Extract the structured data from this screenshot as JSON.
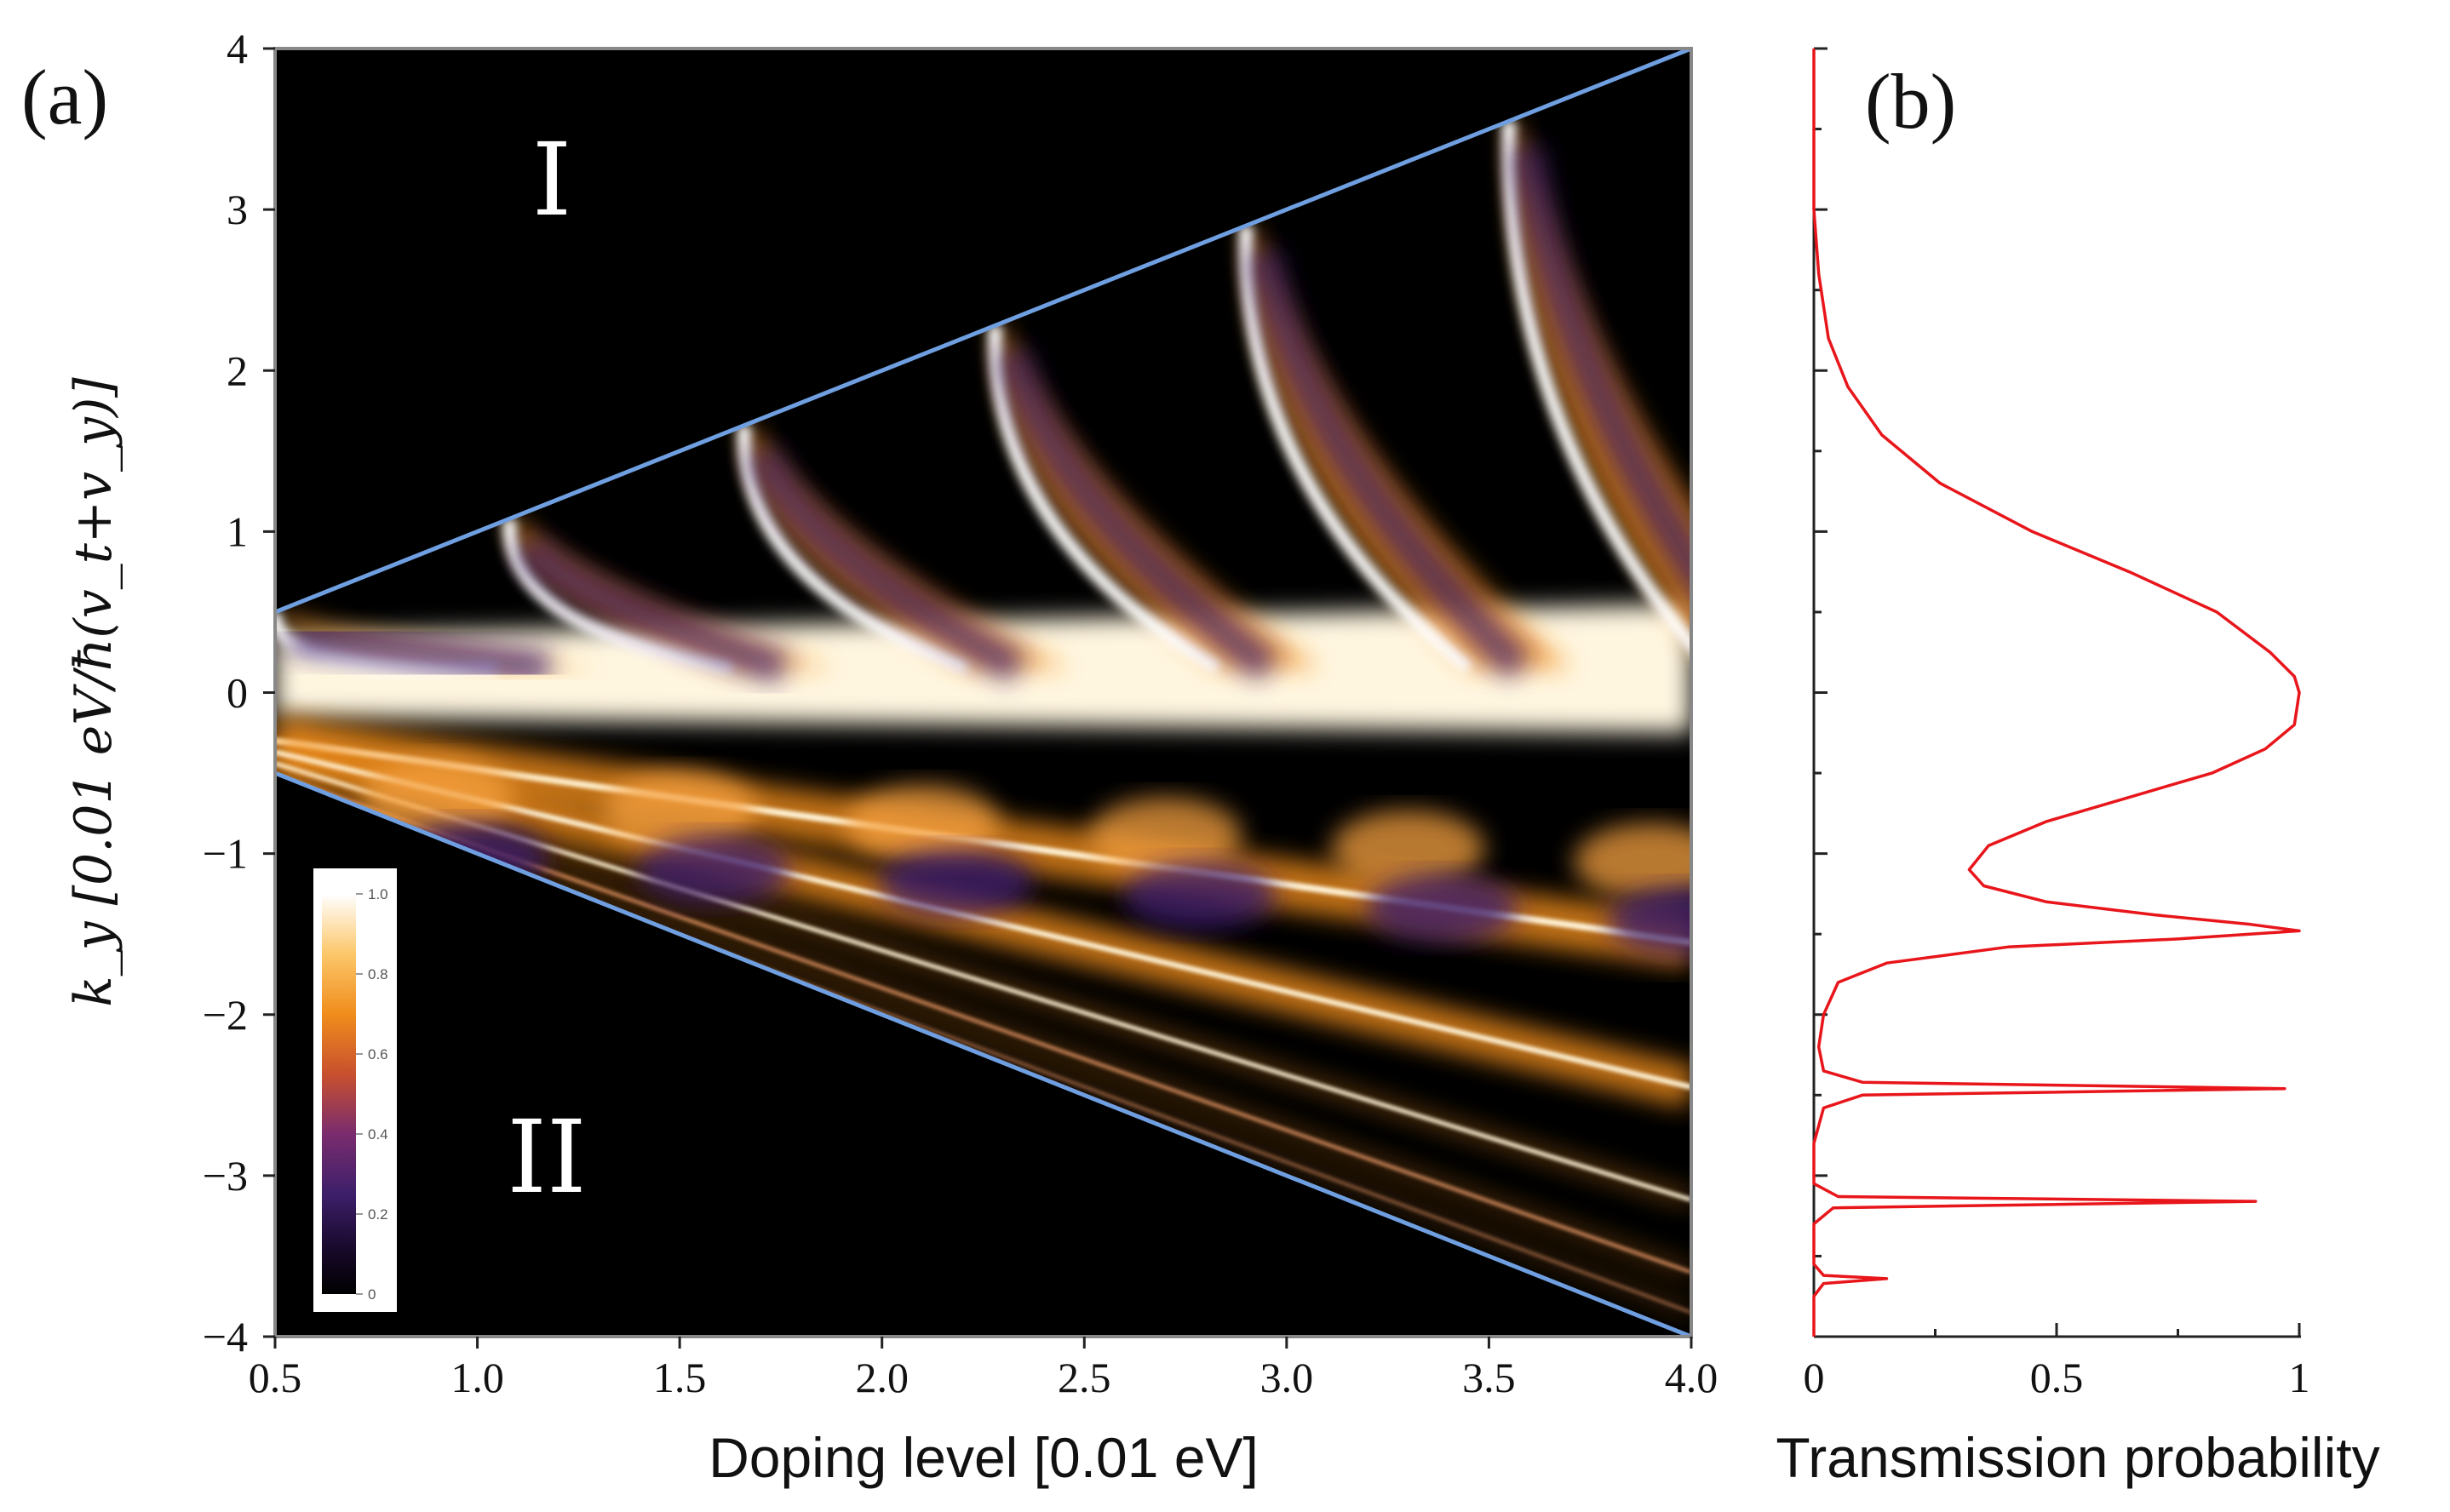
{
  "chart_data": [
    {
      "panel_label": "(a)",
      "type": "heatmap",
      "xlabel": "Doping level [0.01 eV]",
      "ylabel": "k_y [0.01 eV/ħ(v_t+v_y)]",
      "xlim": [
        0.5,
        4.0
      ],
      "ylim": [
        -4,
        4
      ],
      "x_ticks": [
        "0.5",
        "1.0",
        "1.5",
        "2.0",
        "2.5",
        "3.0",
        "3.5",
        "4.0"
      ],
      "y_ticks": [
        "4",
        "3",
        "2",
        "1",
        "0",
        "−1",
        "−2",
        "−3",
        "−4"
      ],
      "region_labels": [
        "I",
        "II"
      ],
      "colorbar": {
        "min": 0,
        "max": 1,
        "ticks": [
          "1.0",
          "0.8",
          "0.6",
          "0.4",
          "0.2",
          "0"
        ]
      },
      "boundary_lines": [
        {
          "name": "upper",
          "x": [
            0.5,
            4.0
          ],
          "y": [
            0.5,
            4.0
          ]
        },
        {
          "name": "lower",
          "x": [
            0.5,
            4.0
          ],
          "y": [
            -0.5,
            -4.0
          ]
        }
      ],
      "cusps": [
        {
          "x": 0.5,
          "y": 0.5
        },
        {
          "x": 1.08,
          "y": 1.08
        },
        {
          "x": 1.66,
          "y": 1.66
        },
        {
          "x": 2.28,
          "y": 2.28
        },
        {
          "x": 2.9,
          "y": 2.9
        },
        {
          "x": 3.55,
          "y": 3.55
        }
      ],
      "resonance_lines_end_y": [
        -1.55,
        -2.45,
        -3.15,
        -3.6,
        -3.85
      ],
      "colors": {
        "upper_boundary": "#6f9fe0",
        "lower_boundary": "#6f9fe0"
      }
    },
    {
      "panel_label": "(b)",
      "type": "line",
      "xlabel": "Transmission probability",
      "x_ticks": [
        "0",
        "0.5",
        "1"
      ],
      "xlim": [
        0,
        1
      ],
      "ylim": [
        -4,
        4
      ],
      "series": [
        {
          "name": "transmission",
          "color": "#e8161b",
          "points": [
            [
              0.0,
              4.0
            ],
            [
              0.0,
              3.5
            ],
            [
              0.0,
              3.0
            ],
            [
              0.01,
              2.6
            ],
            [
              0.03,
              2.2
            ],
            [
              0.07,
              1.9
            ],
            [
              0.14,
              1.6
            ],
            [
              0.26,
              1.3
            ],
            [
              0.45,
              1.0
            ],
            [
              0.65,
              0.75
            ],
            [
              0.83,
              0.5
            ],
            [
              0.94,
              0.25
            ],
            [
              0.99,
              0.1
            ],
            [
              1.0,
              0.0
            ],
            [
              0.99,
              -0.2
            ],
            [
              0.93,
              -0.35
            ],
            [
              0.82,
              -0.5
            ],
            [
              0.65,
              -0.65
            ],
            [
              0.48,
              -0.8
            ],
            [
              0.36,
              -0.95
            ],
            [
              0.32,
              -1.1
            ],
            [
              0.35,
              -1.2
            ],
            [
              0.48,
              -1.3
            ],
            [
              0.7,
              -1.38
            ],
            [
              0.9,
              -1.44
            ],
            [
              1.0,
              -1.48
            ],
            [
              0.75,
              -1.53
            ],
            [
              0.4,
              -1.58
            ],
            [
              0.15,
              -1.68
            ],
            [
              0.05,
              -1.8
            ],
            [
              0.02,
              -2.0
            ],
            [
              0.01,
              -2.2
            ],
            [
              0.02,
              -2.35
            ],
            [
              0.1,
              -2.42
            ],
            [
              0.97,
              -2.46
            ],
            [
              0.1,
              -2.5
            ],
            [
              0.02,
              -2.58
            ],
            [
              0.0,
              -2.8
            ],
            [
              0.0,
              -3.05
            ],
            [
              0.05,
              -3.13
            ],
            [
              0.91,
              -3.16
            ],
            [
              0.04,
              -3.2
            ],
            [
              0.0,
              -3.3
            ],
            [
              0.0,
              -3.55
            ],
            [
              0.02,
              -3.62
            ],
            [
              0.15,
              -3.64
            ],
            [
              0.02,
              -3.67
            ],
            [
              0.0,
              -3.75
            ],
            [
              0.0,
              -4.0
            ]
          ]
        }
      ]
    }
  ]
}
